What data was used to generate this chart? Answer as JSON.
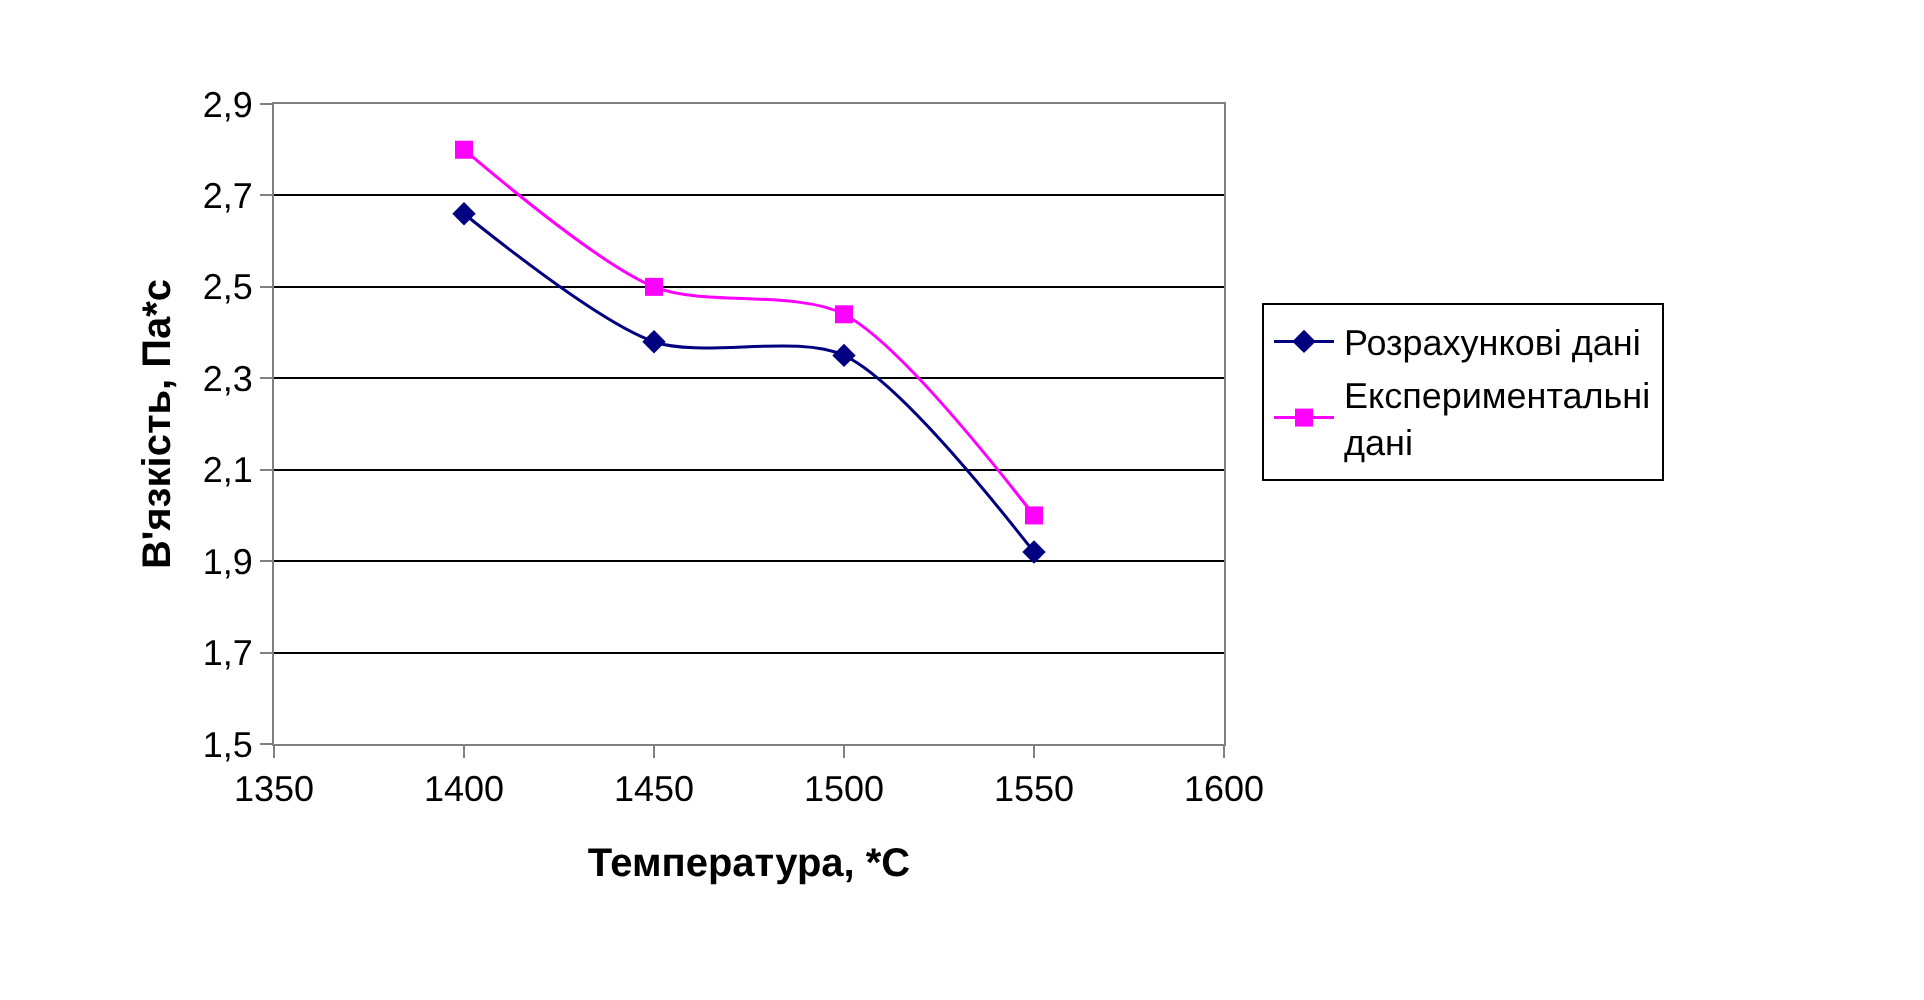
{
  "chart_data": {
    "type": "line",
    "xlabel": "Температура, *С",
    "ylabel": "В'язкість, Па*с",
    "x": [
      1400,
      1450,
      1500,
      1550
    ],
    "series": [
      {
        "name": "Розрахункові дані",
        "color": "#000080",
        "marker": "diamond",
        "values": [
          2.66,
          2.38,
          2.35,
          1.92
        ]
      },
      {
        "name": "Експериментальні дані",
        "color": "#ff00ff",
        "marker": "square",
        "values": [
          2.8,
          2.5,
          2.44,
          2.0
        ]
      }
    ],
    "xlim": [
      1350,
      1600
    ],
    "xticks": [
      1350,
      1400,
      1450,
      1500,
      1550,
      1600
    ],
    "ylim": [
      1.5,
      2.9
    ],
    "yticks": [
      {
        "value": 1.5,
        "label": "1,5"
      },
      {
        "value": 1.7,
        "label": "1,7"
      },
      {
        "value": 1.9,
        "label": "1,9"
      },
      {
        "value": 2.1,
        "label": "2,1"
      },
      {
        "value": 2.3,
        "label": "2,3"
      },
      {
        "value": 2.5,
        "label": "2,5"
      },
      {
        "value": 2.7,
        "label": "2,7"
      },
      {
        "value": 2.9,
        "label": "2,9"
      }
    ],
    "grid": "y",
    "legend": "right",
    "line_style": "solid"
  }
}
